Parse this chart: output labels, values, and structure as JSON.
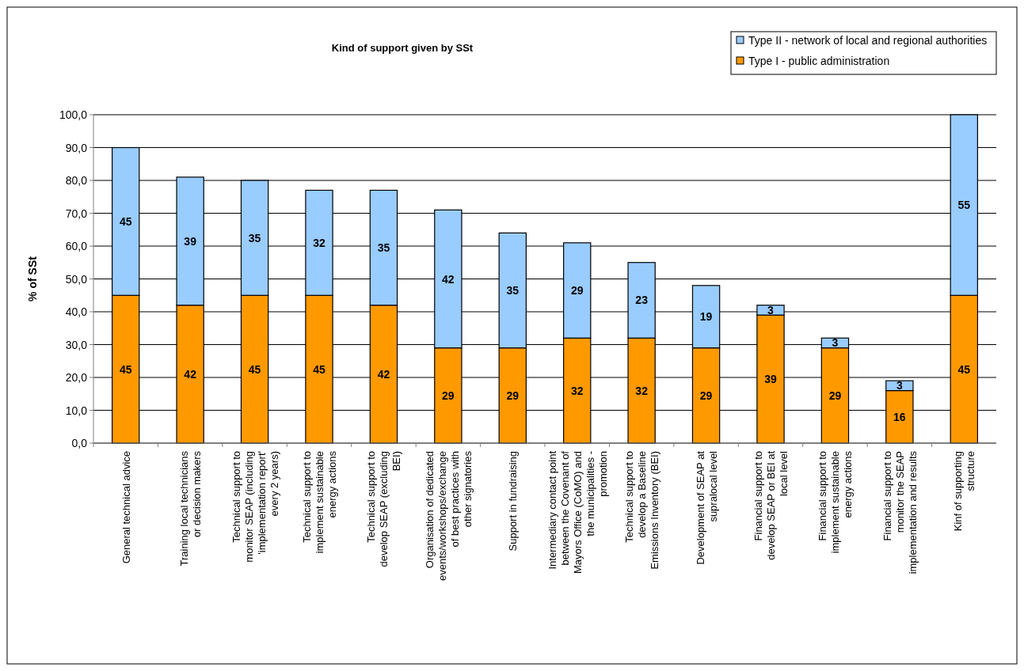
{
  "chart_data": {
    "type": "bar",
    "title": "Kind of support given by SSt",
    "ylabel": "% of SSt",
    "stacked": true,
    "data_labels": true,
    "legend": "top right",
    "grid": "y",
    "categories": [
      "General technical advice",
      "Training local technicians or decision makers",
      "Technical support to monitor SEAP (including 'implementation report' every 2 years)",
      "Technical support to implement sustainable energy actions",
      "Technical support to develop SEAP (excluding BEI)",
      "Organisation of dedicated events/workshops/exchange of best practices with other signatories",
      "Support in fundraising",
      "Intermediary contact point between the Covenant of Mayors Office (CoMO) and the municipalities - promotion",
      "Technical support to develop a Baseline Emissions Inventory (BEI)",
      "Development of SEAP at supralocal level",
      "Financial support to develop SEAP or BEI at local level",
      "Financial support to implement sustainable energy actions",
      "Financial support to monitor the SEAP implementation and results",
      "Kinf of supporting structure"
    ],
    "series": [
      {
        "name": "Type I - public administration",
        "color": "#ff9900",
        "values": [
          45,
          42,
          45,
          45,
          42,
          29,
          29,
          32,
          32,
          29,
          39,
          29,
          16,
          45
        ]
      },
      {
        "name": "Type II - network of local and regional authorities",
        "color": "#99ccff",
        "values": [
          45,
          39,
          35,
          32,
          35,
          42,
          35,
          29,
          23,
          19,
          3,
          3,
          3,
          55
        ]
      }
    ],
    "ylim": [
      0,
      100
    ],
    "yticks": [
      {
        "value": 0,
        "label": "0,0"
      },
      {
        "value": 10,
        "label": "10,0"
      },
      {
        "value": 20,
        "label": "20,0"
      },
      {
        "value": 30,
        "label": "30,0"
      },
      {
        "value": 40,
        "label": "40,0"
      },
      {
        "value": 50,
        "label": "50,0"
      },
      {
        "value": 60,
        "label": "60,0"
      },
      {
        "value": 70,
        "label": "70,0"
      },
      {
        "value": 80,
        "label": "80,0"
      },
      {
        "value": 90,
        "label": "90,0"
      },
      {
        "value": 100,
        "label": "100,0"
      }
    ]
  }
}
